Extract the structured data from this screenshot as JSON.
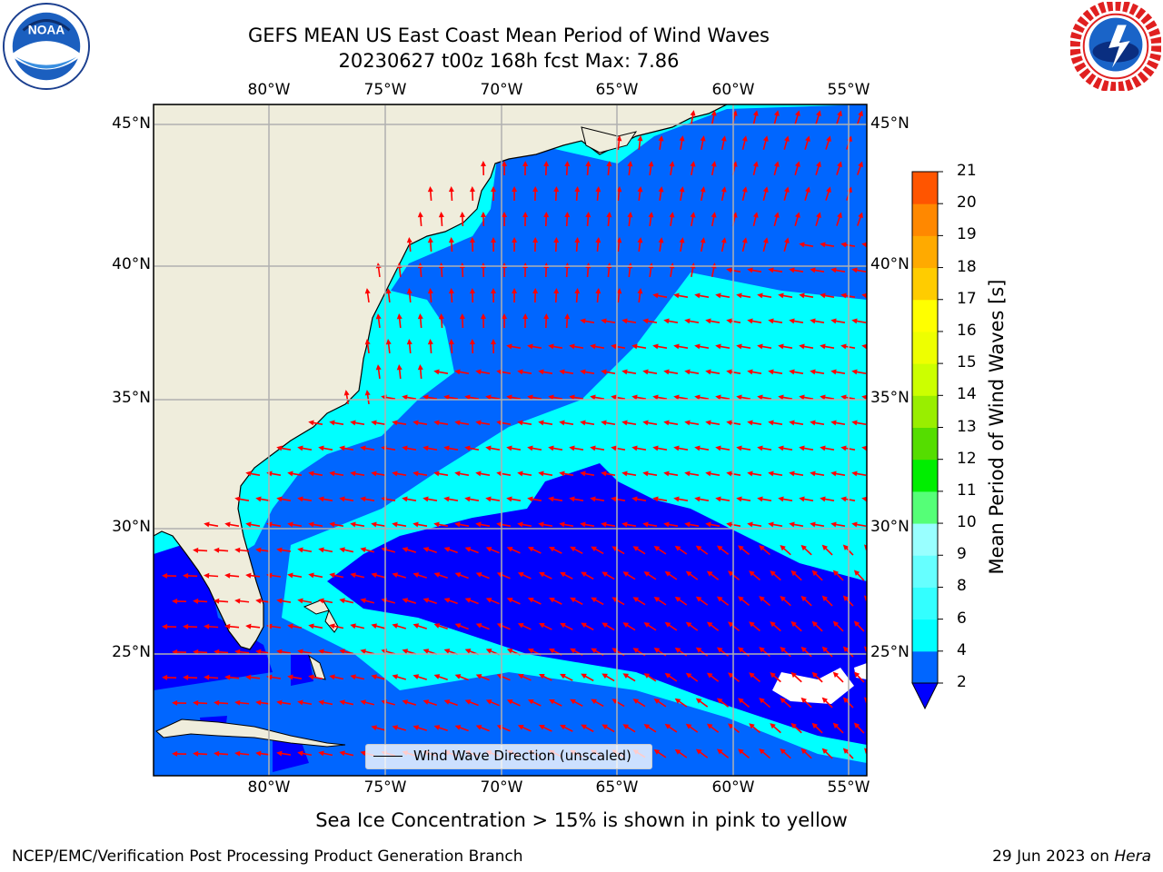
{
  "title_line1": "GEFS MEAN US East Coast Mean Period of Wind Waves",
  "title_line2": "20230627 t00z 168h fcst   Max: 7.86",
  "logos": {
    "left": "noaa-logo",
    "left_text": "NOAA",
    "right": "nws-logo"
  },
  "lon_labels": [
    "80°W",
    "75°W",
    "70°W",
    "65°W",
    "60°W",
    "55°W"
  ],
  "lat_labels": [
    "45°N",
    "40°N",
    "35°N",
    "30°N",
    "25°N"
  ],
  "colorbar": {
    "title": "Mean Period of Wind Waves [s]",
    "ticks": [
      "2",
      "4",
      "6",
      "8",
      "9",
      "10",
      "11",
      "12",
      "13",
      "14",
      "15",
      "16",
      "17",
      "18",
      "19",
      "20",
      "21"
    ],
    "colors": [
      "#0066ff",
      "#00ffff",
      "#33ffff",
      "#66ffff",
      "#99ffff",
      "#55ff77",
      "#00ee00",
      "#55dd00",
      "#99ee00",
      "#ccff00",
      "#eeff00",
      "#ffff00",
      "#ffcc00",
      "#ffaa00",
      "#ff8800",
      "#ff5500",
      "#ff2200",
      "#ff0000"
    ],
    "under_color": "#0000ff",
    "extend": "min"
  },
  "legend_text": "Wind Wave Direction (unscaled)",
  "subcaption": "Sea Ice Concentration > 15% is shown in pink to yellow",
  "footer_left": "NCEP/EMC/Verification Post Processing Product Generation Branch",
  "footer_right_date": "29 Jun 2023 on",
  "footer_right_host": "Hera",
  "map_colors": {
    "land": "#efeddc",
    "low_period": "#0000ff",
    "mid_period": "#0066ff",
    "high_period": "#00ffff",
    "arrows": "#ff0000",
    "grid": "#b0b0b0"
  }
}
